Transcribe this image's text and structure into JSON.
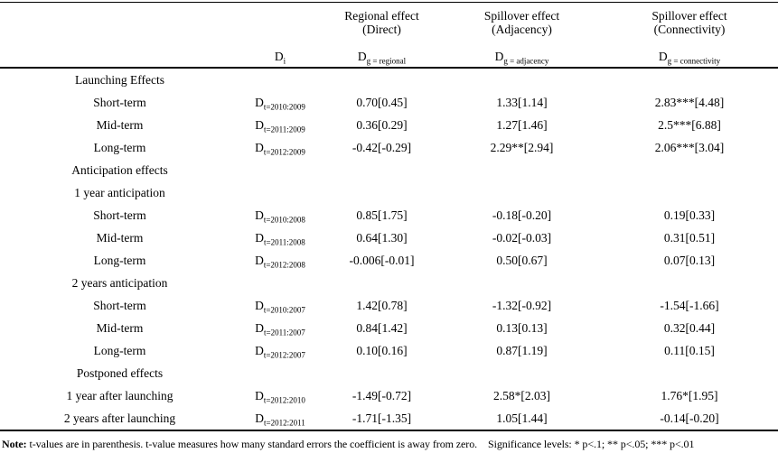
{
  "table": {
    "header": {
      "di": {
        "base": "D",
        "sub": "i"
      },
      "columns": [
        {
          "title": "Regional effect",
          "subtitle": "(Direct)",
          "d_base": "D",
          "d_sub": "g = regional"
        },
        {
          "title": "Spillover effect",
          "subtitle": "(Adjacency)",
          "d_base": "D",
          "d_sub": "g = adjacency"
        },
        {
          "title": "Spillover effect",
          "subtitle": "(Connectivity)",
          "d_base": "D",
          "d_sub": "g = connectivity"
        }
      ]
    },
    "rows": [
      {
        "type": "section",
        "label": "Launching Effects",
        "d_base": "",
        "d_sub": "",
        "values": [
          "",
          "",
          ""
        ]
      },
      {
        "type": "data",
        "label": "Short-term",
        "d_base": "D",
        "d_sub": "t=2010:2009",
        "values": [
          "0.70[0.45]",
          "1.33[1.14]",
          "2.83***[4.48]"
        ]
      },
      {
        "type": "data",
        "label": "Mid-term",
        "d_base": "D",
        "d_sub": "t=2011:2009",
        "values": [
          "0.36[0.29]",
          "1.27[1.46]",
          "2.5***[6.88]"
        ]
      },
      {
        "type": "data",
        "label": "Long-term",
        "d_base": "D",
        "d_sub": "t=2012:2009",
        "values": [
          "-0.42[-0.29]",
          "2.29**[2.94]",
          "2.06***[3.04]"
        ]
      },
      {
        "type": "section",
        "label": "Anticipation effects",
        "d_base": "",
        "d_sub": "",
        "values": [
          "",
          "",
          ""
        ]
      },
      {
        "type": "section",
        "label": "1 year anticipation",
        "d_base": "",
        "d_sub": "",
        "values": [
          "",
          "",
          ""
        ]
      },
      {
        "type": "data",
        "label": "Short-term",
        "d_base": "D",
        "d_sub": "t=2010:2008",
        "values": [
          "0.85[1.75]",
          "-0.18[-0.20]",
          "0.19[0.33]"
        ]
      },
      {
        "type": "data",
        "label": "Mid-term",
        "d_base": "D",
        "d_sub": "t=2011:2008",
        "values": [
          "0.64[1.30]",
          "-0.02[-0.03]",
          "0.31[0.51]"
        ]
      },
      {
        "type": "data",
        "label": "Long-term",
        "d_base": "D",
        "d_sub": "t=2012:2008",
        "values": [
          "-0.006[-0.01]",
          "0.50[0.67]",
          "0.07[0.13]"
        ]
      },
      {
        "type": "section",
        "label": "2 years anticipation",
        "d_base": "",
        "d_sub": "",
        "values": [
          "",
          "",
          ""
        ]
      },
      {
        "type": "data",
        "label": "Short-term",
        "d_base": "D",
        "d_sub": "t=2010:2007",
        "values": [
          "1.42[0.78]",
          "-1.32[-0.92]",
          "-1.54[-1.66]"
        ]
      },
      {
        "type": "data",
        "label": "Mid-term",
        "d_base": "D",
        "d_sub": "t=2011:2007",
        "values": [
          "0.84[1.42]",
          "0.13[0.13]",
          "0.32[0.44]"
        ]
      },
      {
        "type": "data",
        "label": "Long-term",
        "d_base": "D",
        "d_sub": "t=2012:2007",
        "values": [
          "0.10[0.16]",
          "0.87[1.19]",
          "0.11[0.15]"
        ]
      },
      {
        "type": "section",
        "label": "Postponed effects",
        "d_base": "",
        "d_sub": "",
        "values": [
          "",
          "",
          ""
        ]
      },
      {
        "type": "data",
        "label": "1 year after launching",
        "d_base": "D",
        "d_sub": "t=2012:2010",
        "values": [
          "-1.49[-0.72]",
          "2.58*[2.03]",
          "1.76*[1.95]"
        ]
      },
      {
        "type": "data",
        "label": "2 years after launching",
        "d_base": "D",
        "d_sub": "t=2012:2011",
        "values": [
          "-1.71[-1.35]",
          "1.05[1.44]",
          "-0.14[-0.20]"
        ]
      }
    ]
  },
  "note": {
    "label": "Note:",
    "text": "t-values are in parenthesis. t-value measures  how many standard errors the coefficient is away from zero.",
    "significance": "Significance levels: * p<.1; ** p<.05; *** p<.01"
  }
}
